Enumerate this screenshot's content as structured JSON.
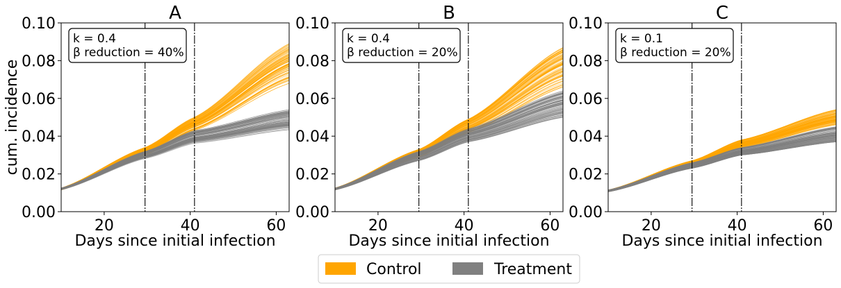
{
  "colors": {
    "control": "#ffa500",
    "treatment": "#808080"
  },
  "legend": [
    {
      "label": "Control",
      "color": "#ffa500"
    },
    {
      "label": "Treatment",
      "color": "#808080"
    }
  ],
  "chart_data": [
    {
      "type": "line",
      "title": "A",
      "xlabel": "Days since initial infection",
      "ylabel": "cum. incidence",
      "xlim": [
        10,
        63
      ],
      "ylim": [
        0,
        0.1
      ],
      "xticks": [
        20,
        40,
        60
      ],
      "yticks": [
        0.0,
        0.02,
        0.04,
        0.06,
        0.08,
        0.1
      ],
      "ytick_labels": [
        "0.00",
        "0.02",
        "0.04",
        "0.06",
        "0.08",
        "0.10"
      ],
      "vlines": [
        29.5,
        41
      ],
      "annotation": [
        "k = 0.4",
        "β reduction = 40%"
      ],
      "series": [
        {
          "name": "Control",
          "band_x": [
            10,
            29.5,
            41,
            63
          ],
          "y_mid": [
            0.012,
            0.032,
            0.046,
            0.079
          ],
          "y_low": [
            0.0115,
            0.03,
            0.043,
            0.068
          ],
          "y_high": [
            0.0125,
            0.034,
            0.05,
            0.089
          ]
        },
        {
          "name": "Treatment",
          "band_x": [
            10,
            29.5,
            41,
            63
          ],
          "y_mid": [
            0.012,
            0.03,
            0.04,
            0.049
          ],
          "y_low": [
            0.0115,
            0.028,
            0.036,
            0.043
          ],
          "y_high": [
            0.0125,
            0.032,
            0.043,
            0.054
          ]
        }
      ]
    },
    {
      "type": "line",
      "title": "B",
      "xlabel": "Days since initial infection",
      "ylabel": "",
      "xlim": [
        10,
        63
      ],
      "ylim": [
        0,
        0.1
      ],
      "xticks": [
        20,
        40,
        60
      ],
      "yticks": [
        0.0,
        0.02,
        0.04,
        0.06,
        0.08,
        0.1
      ],
      "ytick_labels": [
        "0.00",
        "0.02",
        "0.04",
        "0.06",
        "0.08",
        "0.10"
      ],
      "vlines": [
        29.5,
        41
      ],
      "annotation": [
        "k = 0.4",
        "β reduction = 20%"
      ],
      "series": [
        {
          "name": "Control",
          "band_x": [
            10,
            29.5,
            41,
            63
          ],
          "y_mid": [
            0.012,
            0.031,
            0.045,
            0.076
          ],
          "y_low": [
            0.0115,
            0.029,
            0.042,
            0.066
          ],
          "y_high": [
            0.0125,
            0.033,
            0.049,
            0.087
          ]
        },
        {
          "name": "Treatment",
          "band_x": [
            10,
            29.5,
            41,
            63
          ],
          "y_mid": [
            0.012,
            0.03,
            0.041,
            0.058
          ],
          "y_low": [
            0.0115,
            0.027,
            0.037,
            0.05
          ],
          "y_high": [
            0.0125,
            0.032,
            0.044,
            0.064
          ]
        }
      ]
    },
    {
      "type": "line",
      "title": "C",
      "xlabel": "Days since initial infection",
      "ylabel": "",
      "xlim": [
        10,
        63
      ],
      "ylim": [
        0,
        0.1
      ],
      "xticks": [
        20,
        40,
        60
      ],
      "yticks": [
        0.0,
        0.02,
        0.04,
        0.06,
        0.08,
        0.1
      ],
      "ytick_labels": [
        "0.00",
        "0.02",
        "0.04",
        "0.06",
        "0.08",
        "0.10"
      ],
      "vlines": [
        29.5,
        41
      ],
      "annotation": [
        "k = 0.1",
        "β reduction = 20%"
      ],
      "series": [
        {
          "name": "Control",
          "band_x": [
            10,
            29.5,
            41,
            63
          ],
          "y_mid": [
            0.011,
            0.026,
            0.036,
            0.05
          ],
          "y_low": [
            0.0105,
            0.024,
            0.034,
            0.046
          ],
          "y_high": [
            0.0115,
            0.027,
            0.038,
            0.054
          ]
        },
        {
          "name": "Treatment",
          "band_x": [
            10,
            29.5,
            41,
            63
          ],
          "y_mid": [
            0.011,
            0.025,
            0.032,
            0.041
          ],
          "y_low": [
            0.0105,
            0.023,
            0.03,
            0.037
          ],
          "y_high": [
            0.0115,
            0.026,
            0.034,
            0.045
          ]
        }
      ]
    }
  ]
}
